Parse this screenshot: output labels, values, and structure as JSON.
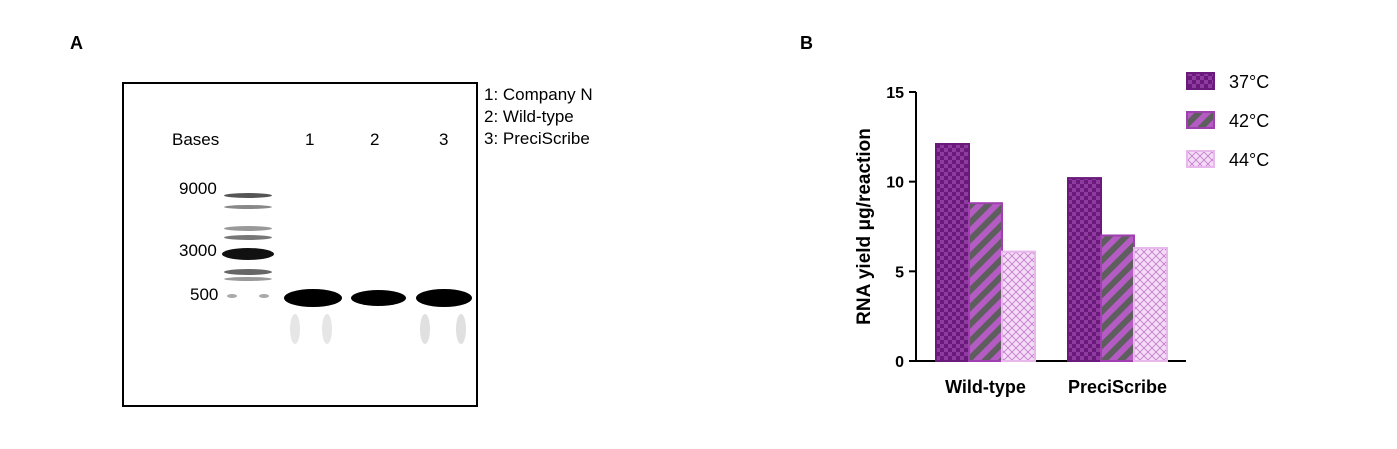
{
  "panel_a": {
    "letter": "A",
    "bases_label": "Bases",
    "lane_numbers": [
      "1",
      "2",
      "3"
    ],
    "markers": [
      "9000",
      "3000",
      "500"
    ],
    "legend": [
      "1: Company N",
      "2: Wild-type",
      "3: PreciScribe"
    ]
  },
  "panel_b": {
    "letter": "B"
  },
  "chart_data": {
    "type": "bar",
    "categories": [
      "Wild-type",
      "PreciScribe"
    ],
    "series": [
      {
        "name": "37°C",
        "values": [
          12.1,
          10.2
        ],
        "color": "#6a1a7a",
        "pattern": "checker"
      },
      {
        "name": "42°C",
        "values": [
          8.8,
          7.0
        ],
        "color": "#a040b0",
        "pattern": "diagonal"
      },
      {
        "name": "44°C",
        "values": [
          6.1,
          6.3
        ],
        "color": "#e8b8ec",
        "pattern": "crosshatch"
      }
    ],
    "ylabel": "RNA yield μg/reaction",
    "xlabel": "",
    "ylim": [
      0,
      15
    ],
    "yticks": [
      "0",
      "5",
      "10",
      "15"
    ],
    "legend_position": "top-right"
  }
}
